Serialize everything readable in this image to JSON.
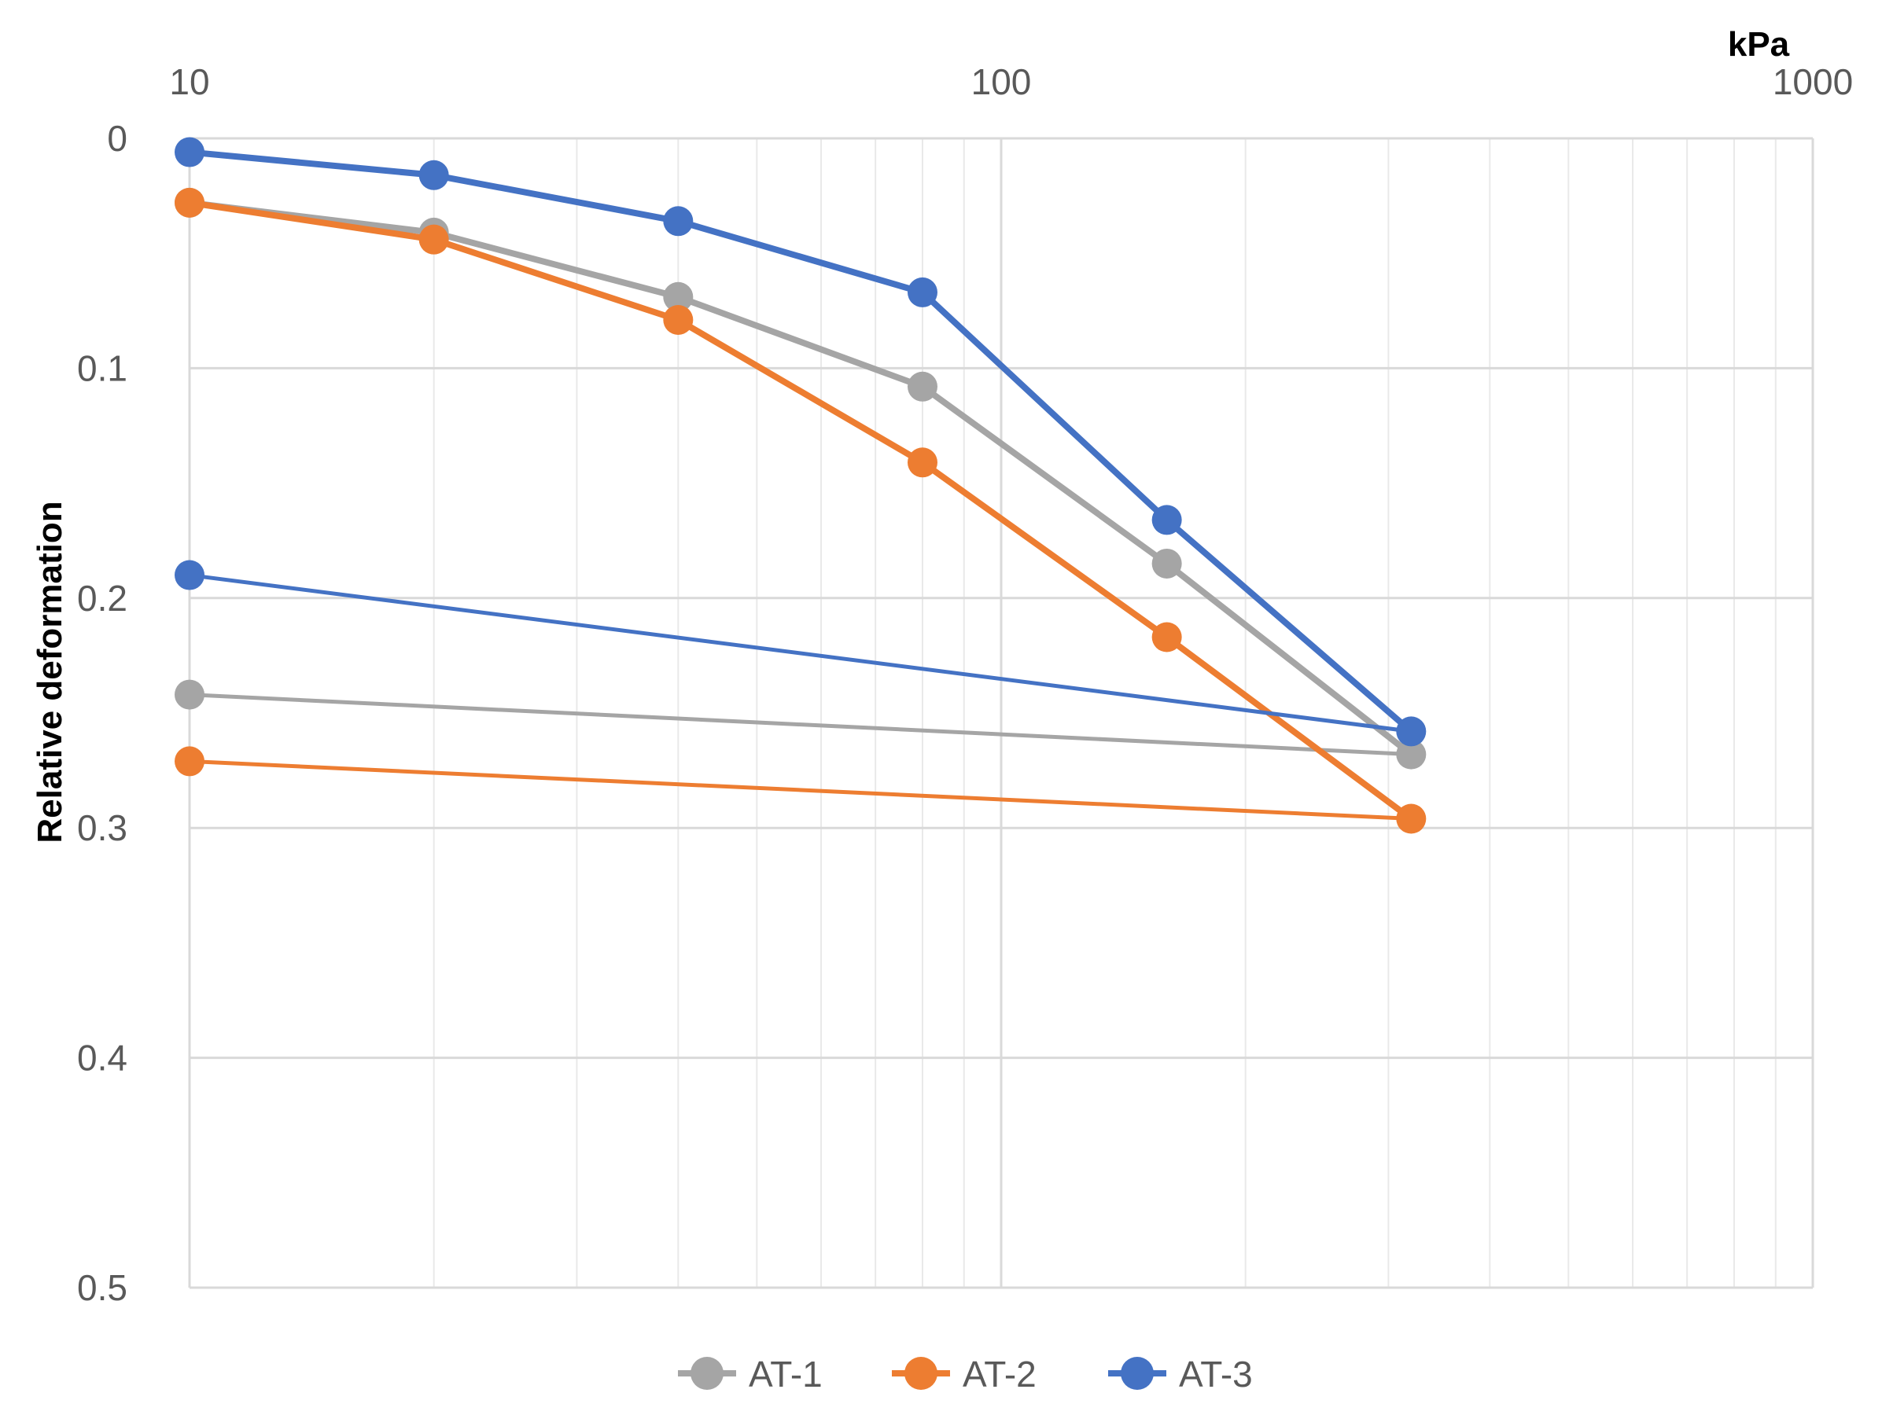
{
  "chart_data": {
    "type": "line",
    "title": "",
    "xlabel": "kPa",
    "ylabel": "Relative deformation",
    "x_scale": "log",
    "xlim": [
      10,
      1000
    ],
    "ylim": [
      0,
      0.5
    ],
    "y_inverted": true,
    "x_axis_position": "top",
    "grid": true,
    "x_ticks": [
      "10",
      "100",
      "1000"
    ],
    "y_ticks": [
      "0",
      "0.1",
      "0.2",
      "0.3",
      "0.4",
      "0.5"
    ],
    "legend": {
      "position": "bottom",
      "entries": [
        "AT-1",
        "AT-2",
        "AT-3"
      ]
    },
    "series": [
      {
        "name": "AT-1",
        "color": "#a5a5a5",
        "loading": {
          "x": [
            10,
            20,
            40,
            80,
            160,
            320
          ],
          "y": [
            0.028,
            0.041,
            0.069,
            0.108,
            0.185,
            0.268
          ]
        },
        "unloading": {
          "x": [
            320,
            10
          ],
          "y": [
            0.268,
            0.242
          ]
        }
      },
      {
        "name": "AT-2",
        "color": "#ed7d31",
        "loading": {
          "x": [
            10,
            20,
            40,
            80,
            160,
            320
          ],
          "y": [
            0.028,
            0.044,
            0.079,
            0.141,
            0.217,
            0.296
          ]
        },
        "unloading": {
          "x": [
            320,
            10
          ],
          "y": [
            0.296,
            0.271
          ]
        }
      },
      {
        "name": "AT-3",
        "color": "#4472c4",
        "loading": {
          "x": [
            10,
            20,
            40,
            80,
            160,
            320
          ],
          "y": [
            0.006,
            0.016,
            0.036,
            0.067,
            0.166,
            0.258
          ]
        },
        "unloading": {
          "x": [
            320,
            10
          ],
          "y": [
            0.258,
            0.19
          ]
        }
      }
    ]
  }
}
